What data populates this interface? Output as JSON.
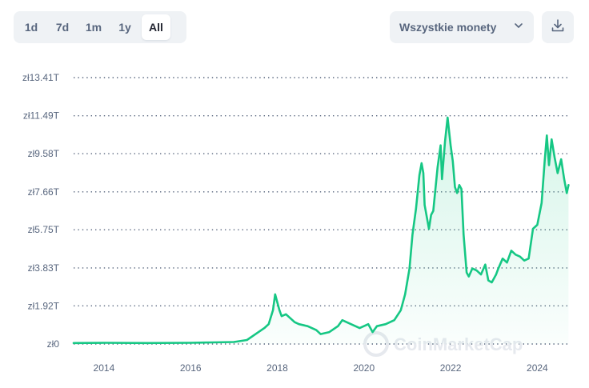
{
  "toolbar": {
    "ranges": [
      "1d",
      "7d",
      "1m",
      "1y",
      "All"
    ],
    "active_range": "All",
    "coin_select": "Wszystkie monety"
  },
  "watermark": "CoinMarketCap",
  "colors": {
    "line": "#16c784",
    "grid": "#58667e",
    "tab_bg": "#eff2f5"
  },
  "chart_data": {
    "type": "area",
    "ylim": [
      0,
      13.41
    ],
    "yticks": [
      0,
      1.92,
      3.83,
      5.75,
      7.66,
      9.58,
      11.49,
      13.41
    ],
    "ytick_labels": [
      "zł0",
      "zł1.92T",
      "zł3.83T",
      "zł5.75T",
      "zł7.66T",
      "zł9.58T",
      "zł11.49T",
      "zł13.41T"
    ],
    "xlim": [
      2013.3,
      2024.75
    ],
    "xticks": [
      2014,
      2016,
      2018,
      2020,
      2022,
      2024
    ],
    "xtick_labels": [
      "2014",
      "2016",
      "2018",
      "2020",
      "2022",
      "2024"
    ],
    "grid": true,
    "x": [
      2013.3,
      2014.0,
      2015.0,
      2016.0,
      2016.5,
      2017.0,
      2017.3,
      2017.5,
      2017.7,
      2017.8,
      2017.9,
      2017.95,
      2018.0,
      2018.05,
      2018.1,
      2018.2,
      2018.3,
      2018.4,
      2018.5,
      2018.7,
      2018.9,
      2019.0,
      2019.2,
      2019.4,
      2019.5,
      2019.7,
      2019.9,
      2020.1,
      2020.2,
      2020.3,
      2020.5,
      2020.7,
      2020.85,
      2020.95,
      2021.05,
      2021.12,
      2021.2,
      2021.28,
      2021.33,
      2021.37,
      2021.4,
      2021.5,
      2021.55,
      2021.6,
      2021.65,
      2021.7,
      2021.77,
      2021.8,
      2021.87,
      2021.93,
      2022.0,
      2022.05,
      2022.1,
      2022.15,
      2022.2,
      2022.25,
      2022.3,
      2022.37,
      2022.42,
      2022.5,
      2022.6,
      2022.7,
      2022.8,
      2022.87,
      2022.95,
      2023.05,
      2023.1,
      2023.2,
      2023.3,
      2023.4,
      2023.5,
      2023.6,
      2023.7,
      2023.8,
      2023.9,
      2024.0,
      2024.1,
      2024.17,
      2024.22,
      2024.27,
      2024.33,
      2024.4,
      2024.47,
      2024.55,
      2024.62,
      2024.68,
      2024.72
    ],
    "y": [
      0.05,
      0.06,
      0.05,
      0.06,
      0.08,
      0.1,
      0.2,
      0.5,
      0.8,
      1.0,
      1.7,
      2.5,
      2.1,
      1.7,
      1.4,
      1.5,
      1.3,
      1.1,
      1.0,
      0.9,
      0.7,
      0.5,
      0.6,
      0.9,
      1.2,
      1.0,
      0.8,
      1.0,
      0.6,
      0.9,
      1.0,
      1.2,
      1.7,
      2.5,
      3.8,
      5.5,
      6.8,
      8.5,
      9.1,
      8.6,
      7.0,
      5.8,
      6.5,
      6.7,
      7.8,
      8.9,
      10.0,
      8.3,
      10.2,
      11.4,
      10.0,
      9.2,
      7.9,
      7.6,
      8.0,
      7.8,
      5.5,
      3.6,
      3.4,
      3.8,
      3.7,
      3.5,
      4.0,
      3.2,
      3.1,
      3.5,
      3.8,
      4.3,
      4.1,
      4.7,
      4.5,
      4.4,
      4.2,
      4.3,
      5.8,
      6.0,
      7.1,
      9.2,
      10.5,
      9.0,
      10.3,
      9.4,
      8.6,
      9.3,
      8.3,
      7.6,
      8.0
    ]
  }
}
